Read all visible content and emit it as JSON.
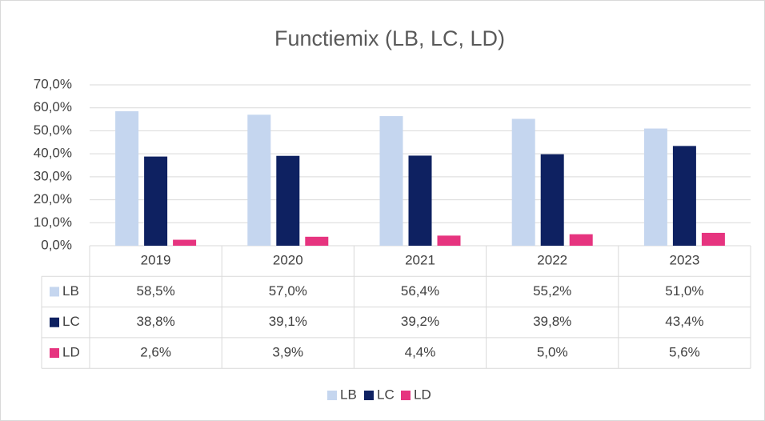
{
  "chart_data": {
    "type": "bar",
    "title": "Functiemix (LB, LC, LD)",
    "categories": [
      "2019",
      "2020",
      "2021",
      "2022",
      "2023"
    ],
    "series": [
      {
        "name": "LB",
        "color": "#c5d6ef",
        "values": [
          58.5,
          57.0,
          56.4,
          55.2,
          51.0
        ],
        "value_labels": [
          "58,5%",
          "57,0%",
          "56,4%",
          "55,2%",
          "51,0%"
        ]
      },
      {
        "name": "LC",
        "color": "#0e2161",
        "values": [
          38.8,
          39.1,
          39.2,
          39.8,
          43.4
        ],
        "value_labels": [
          "38,8%",
          "39,1%",
          "39,2%",
          "39,8%",
          "43,4%"
        ]
      },
      {
        "name": "LD",
        "color": "#e6347f",
        "values": [
          2.6,
          3.9,
          4.4,
          5.0,
          5.6
        ],
        "value_labels": [
          "2,6%",
          "3,9%",
          "4,4%",
          "5,0%",
          "5,6%"
        ]
      }
    ],
    "ylim": [
      0,
      70
    ],
    "yticks": [
      {
        "value": 0,
        "label": "0,0%"
      },
      {
        "value": 10,
        "label": "10,0%"
      },
      {
        "value": 20,
        "label": "20,0%"
      },
      {
        "value": 30,
        "label": "30,0%"
      },
      {
        "value": 40,
        "label": "40,0%"
      },
      {
        "value": 50,
        "label": "50,0%"
      },
      {
        "value": 60,
        "label": "60,0%"
      },
      {
        "value": 70,
        "label": "70,0%"
      }
    ],
    "grid": true,
    "legend": "bottom"
  }
}
